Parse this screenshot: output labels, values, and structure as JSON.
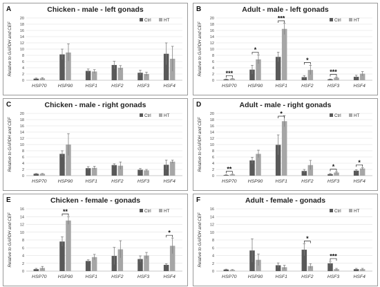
{
  "figure": {
    "legend": {
      "ctrl_label": "Ctrl",
      "ht_label": "HT"
    },
    "colors": {
      "ctrl": "#595959",
      "ht": "#a6a6a6",
      "error_bar": "#7f7f7f",
      "gridline": "#d9d9d9",
      "border": "#999999"
    },
    "ylabel": "Relative to GAPDH and CEF"
  },
  "chart_data": [
    {
      "letter": "A",
      "title": "Chicken - male - left gonads",
      "type": "bar",
      "categories": [
        "HSP70",
        "HSP90",
        "HSF1",
        "HSF2",
        "HSF3",
        "HSF4"
      ],
      "ylim": [
        0,
        20
      ],
      "yticks": [
        0,
        2,
        4,
        6,
        8,
        10,
        12,
        14,
        16,
        18,
        20
      ],
      "grid": true,
      "legend_position": "top-right",
      "series": [
        {
          "name": "Ctrl",
          "values": [
            0.5,
            8.3,
            3.0,
            4.9,
            2.4,
            8.5
          ],
          "errors": [
            0.2,
            1.7,
            0.6,
            1.2,
            0.8,
            3.5
          ]
        },
        {
          "name": "HT",
          "values": [
            0.6,
            8.9,
            2.8,
            4.0,
            2.0,
            6.9
          ],
          "errors": [
            0.2,
            2.8,
            0.6,
            0.7,
            0.6,
            4.0
          ]
        }
      ],
      "significance": []
    },
    {
      "letter": "B",
      "title": "Adult - male - left gonads",
      "type": "bar",
      "categories": [
        "HSP70",
        "HSP90",
        "HSF1",
        "HSF2",
        "HSF3",
        "HSF4"
      ],
      "ylim": [
        0,
        20
      ],
      "yticks": [
        0,
        2,
        4,
        6,
        8,
        10,
        12,
        14,
        16,
        18,
        20
      ],
      "grid": true,
      "legend_position": "top-right",
      "series": [
        {
          "name": "Ctrl",
          "values": [
            0.3,
            3.4,
            7.5,
            1.0,
            0.3,
            1.1
          ],
          "errors": [
            0.1,
            1.4,
            1.5,
            0.5,
            0.1,
            0.5
          ]
        },
        {
          "name": "HT",
          "values": [
            0.5,
            6.7,
            16.5,
            3.3,
            0.8,
            2.1
          ],
          "errors": [
            0.1,
            1.4,
            1.8,
            1.5,
            0.2,
            0.7
          ]
        }
      ],
      "significance": [
        {
          "category": 0,
          "label": "***"
        },
        {
          "category": 1,
          "label": "*"
        },
        {
          "category": 2,
          "label": "***"
        },
        {
          "category": 3,
          "label": "*"
        },
        {
          "category": 4,
          "label": "***"
        }
      ]
    },
    {
      "letter": "C",
      "title": "Chicken - male - right gonads",
      "type": "bar",
      "categories": [
        "HSP70",
        "HSP90",
        "HSF1",
        "HSF2",
        "HSF3",
        "HSF4"
      ],
      "ylim": [
        0,
        20
      ],
      "yticks": [
        0,
        2,
        4,
        6,
        8,
        10,
        12,
        14,
        16,
        18,
        20
      ],
      "grid": true,
      "legend_position": "top-right",
      "series": [
        {
          "name": "Ctrl",
          "values": [
            0.6,
            7.0,
            2.4,
            3.4,
            1.9,
            3.5
          ],
          "errors": [
            0.1,
            1.0,
            0.5,
            0.4,
            0.4,
            1.5
          ]
        },
        {
          "name": "HT",
          "values": [
            0.6,
            10.0,
            2.5,
            3.2,
            1.7,
            4.5
          ],
          "errors": [
            0.1,
            3.5,
            0.5,
            1.2,
            0.3,
            0.5
          ]
        }
      ],
      "significance": []
    },
    {
      "letter": "D",
      "title": "Adult - male - right gonads",
      "type": "bar",
      "categories": [
        "HSP70",
        "HSP90",
        "HSF1",
        "HSF2",
        "HSF3",
        "HSF4"
      ],
      "ylim": [
        0,
        20
      ],
      "yticks": [
        0,
        2,
        4,
        6,
        8,
        10,
        12,
        14,
        16,
        18,
        20
      ],
      "grid": true,
      "legend_position": "top-right",
      "series": [
        {
          "name": "Ctrl",
          "values": [
            0.2,
            4.9,
            9.9,
            1.5,
            0.5,
            1.6
          ],
          "errors": [
            0.1,
            1.0,
            3.2,
            0.5,
            0.2,
            0.3
          ]
        },
        {
          "name": "HT",
          "values": [
            0.4,
            7.0,
            17.5,
            3.4,
            1.0,
            2.3
          ],
          "errors": [
            0.1,
            1.2,
            1.8,
            1.5,
            0.2,
            0.3
          ]
        }
      ],
      "significance": [
        {
          "category": 0,
          "label": "**"
        },
        {
          "category": 2,
          "label": "*"
        },
        {
          "category": 4,
          "label": "*"
        },
        {
          "category": 5,
          "label": "*"
        }
      ]
    },
    {
      "letter": "E",
      "title": "Chicken - female - gonads",
      "type": "bar",
      "categories": [
        "HSP70",
        "HSP90",
        "HSF1",
        "HSF2",
        "HSF3",
        "HSF4"
      ],
      "ylim": [
        0,
        16
      ],
      "yticks": [
        0,
        2,
        4,
        6,
        8,
        10,
        12,
        14,
        16
      ],
      "grid": true,
      "legend_position": "top-right",
      "series": [
        {
          "name": "Ctrl",
          "values": [
            0.5,
            7.6,
            2.6,
            3.9,
            3.1,
            1.6
          ],
          "errors": [
            0.2,
            1.2,
            0.3,
            2.2,
            0.8,
            0.3
          ]
        },
        {
          "name": "HT",
          "values": [
            0.8,
            13.0,
            3.6,
            5.6,
            4.0,
            6.5
          ],
          "errors": [
            0.4,
            1.0,
            0.7,
            2.2,
            0.8,
            2.0
          ]
        }
      ],
      "significance": [
        {
          "category": 1,
          "label": "**"
        },
        {
          "category": 5,
          "label": "*"
        }
      ]
    },
    {
      "letter": "F",
      "title": "Adult - female - gonads",
      "type": "bar",
      "categories": [
        "HSP70",
        "HSP90",
        "HSF1",
        "HSF2",
        "HSF3",
        "HSF4"
      ],
      "ylim": [
        0,
        16
      ],
      "yticks": [
        0,
        2,
        4,
        6,
        8,
        10,
        12,
        14,
        16
      ],
      "grid": true,
      "legend_position": "top-right",
      "series": [
        {
          "name": "Ctrl",
          "values": [
            0.4,
            5.3,
            1.5,
            5.5,
            2.0,
            0.5
          ],
          "errors": [
            0.1,
            3.0,
            0.6,
            1.5,
            0.5,
            0.2
          ]
        },
        {
          "name": "HT",
          "values": [
            0.3,
            2.9,
            1.0,
            1.3,
            0.5,
            0.5
          ],
          "errors": [
            0.1,
            1.5,
            0.5,
            0.6,
            0.2,
            0.2
          ]
        }
      ],
      "significance": [
        {
          "category": 3,
          "label": "*"
        },
        {
          "category": 4,
          "label": "***"
        }
      ]
    }
  ]
}
